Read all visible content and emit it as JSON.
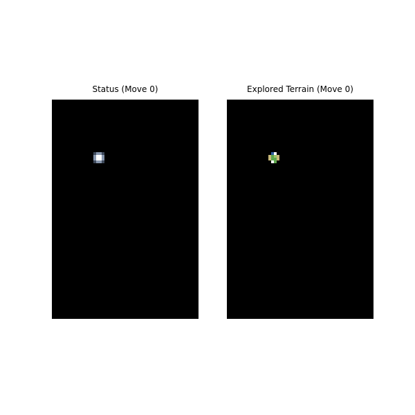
{
  "status_panel": {
    "title": "Status (Move 0)",
    "background": "#000000"
  },
  "terrain_panel": {
    "title": "Explored Terrain (Move 0)",
    "background": "#000000"
  },
  "colors": {
    "revealed": "#ffffff",
    "fog_edge": "#8796ad",
    "fog_dark": "#3f4a5c",
    "grass": "#5fa84e",
    "grass_light": "#9fc46a",
    "sand": "#c9b97a",
    "water": "#2f5e9e"
  }
}
